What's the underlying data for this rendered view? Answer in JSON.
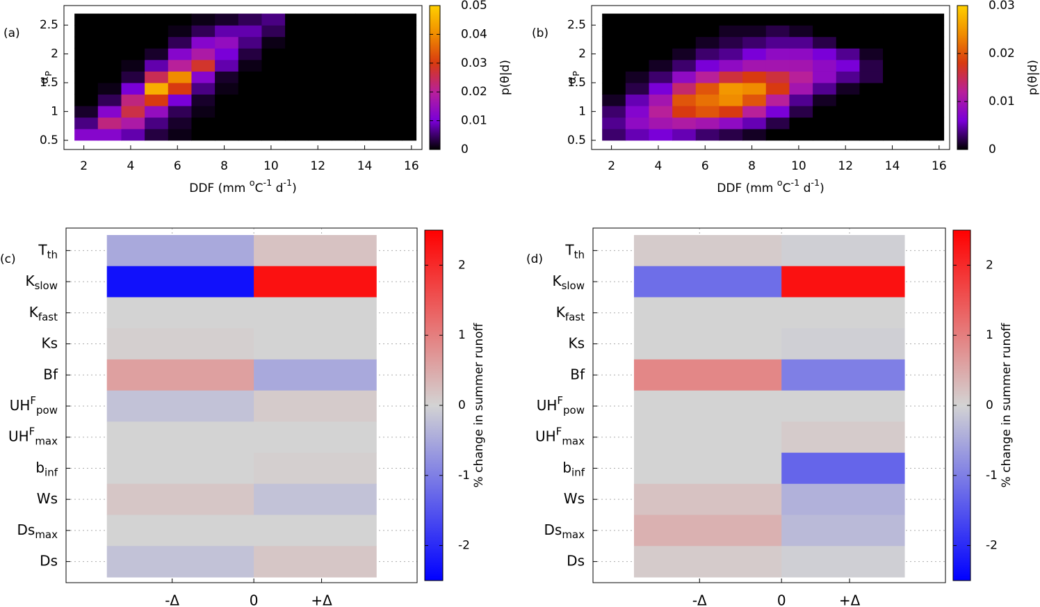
{
  "chart_data": [
    {
      "type": "histogram2d",
      "panel_label": "(a)",
      "xlabel": [
        {
          "text": "DDF (mm "
        },
        {
          "sup": "o"
        },
        {
          "text": "C"
        },
        {
          "sup": "-1"
        },
        {
          "text": " d"
        },
        {
          "sup": "-1"
        },
        {
          "text": ")"
        }
      ],
      "ylabel": {
        "base": "α",
        "sub": "P"
      },
      "xlim": [
        1.15,
        16.45
      ],
      "ylim": [
        0.34,
        2.84
      ],
      "xticks": [
        2,
        4,
        6,
        8,
        10,
        12,
        14,
        16
      ],
      "yticks": [
        0.5,
        1,
        1.5,
        2,
        2.5
      ],
      "xbins": [
        1.6,
        2.6,
        3.6,
        4.6,
        5.6,
        6.6,
        7.6,
        8.6,
        9.6,
        10.6,
        11.6,
        12.6,
        13.6,
        14.6,
        15.6,
        16.2
      ],
      "ybins": [
        0.5,
        0.7,
        0.9,
        1.1,
        1.3,
        1.5,
        1.7,
        1.9,
        2.1,
        2.3,
        2.5,
        2.7
      ],
      "values": [
        [
          0.012,
          0.012,
          0.008,
          0.003,
          0.001,
          0,
          0,
          0,
          0,
          0,
          0,
          0,
          0,
          0,
          0
        ],
        [
          0.006,
          0.022,
          0.018,
          0.006,
          0.002,
          0,
          0,
          0,
          0,
          0,
          0,
          0,
          0,
          0,
          0
        ],
        [
          0.002,
          0.012,
          0.026,
          0.014,
          0.004,
          0.001,
          0,
          0,
          0,
          0,
          0,
          0,
          0,
          0,
          0
        ],
        [
          0,
          0.004,
          0.022,
          0.03,
          0.01,
          0.002,
          0,
          0,
          0,
          0,
          0,
          0,
          0,
          0,
          0
        ],
        [
          0,
          0.001,
          0.01,
          0.045,
          0.03,
          0.006,
          0.001,
          0,
          0,
          0,
          0,
          0,
          0,
          0,
          0
        ],
        [
          0,
          0,
          0.003,
          0.025,
          0.04,
          0.012,
          0.002,
          0,
          0,
          0,
          0,
          0,
          0,
          0,
          0
        ],
        [
          0,
          0,
          0.001,
          0.008,
          0.02,
          0.028,
          0.008,
          0.001,
          0,
          0,
          0,
          0,
          0,
          0,
          0
        ],
        [
          0,
          0,
          0,
          0.002,
          0.012,
          0.018,
          0.01,
          0.003,
          0,
          0,
          0,
          0,
          0,
          0,
          0
        ],
        [
          0,
          0,
          0,
          0,
          0.004,
          0.012,
          0.014,
          0.006,
          0.001,
          0,
          0,
          0,
          0,
          0,
          0
        ],
        [
          0,
          0,
          0,
          0,
          0.001,
          0.004,
          0.008,
          0.008,
          0.004,
          0,
          0,
          0,
          0,
          0,
          0
        ],
        [
          0,
          0,
          0,
          0,
          0,
          0.001,
          0.002,
          0.004,
          0.006,
          0,
          0,
          0,
          0,
          0,
          0
        ]
      ],
      "clim": [
        0,
        0.05
      ],
      "cticks": [
        0,
        0.01,
        0.02,
        0.03,
        0.04,
        0.05
      ],
      "colorbar_label": "p(θ|d)",
      "colormap": [
        "#000000",
        "#7a00d8",
        "#b8209a",
        "#d83a10",
        "#f08c00",
        "#ffd000"
      ]
    },
    {
      "type": "histogram2d",
      "panel_label": "(b)",
      "xlabel": [
        {
          "text": "DDF (mm "
        },
        {
          "sup": "o"
        },
        {
          "text": "C"
        },
        {
          "sup": "-1"
        },
        {
          "text": " d"
        },
        {
          "sup": "-1"
        },
        {
          "text": ")"
        }
      ],
      "ylabel": {
        "base": "α",
        "sub": "P"
      },
      "xlim": [
        1.15,
        16.45
      ],
      "ylim": [
        0.34,
        2.84
      ],
      "xticks": [
        2,
        4,
        6,
        8,
        10,
        12,
        14,
        16
      ],
      "yticks": [
        0.5,
        1,
        1.5,
        2,
        2.5
      ],
      "xbins": [
        1.6,
        2.6,
        3.6,
        4.6,
        5.6,
        6.6,
        7.6,
        8.6,
        9.6,
        10.6,
        11.6,
        12.6,
        13.6,
        14.6,
        15.6,
        16.2
      ],
      "ybins": [
        0.5,
        0.7,
        0.9,
        1.1,
        1.3,
        1.5,
        1.7,
        1.9,
        2.1,
        2.3,
        2.5,
        2.7
      ],
      "values": [
        [
          0.003,
          0.005,
          0.006,
          0.005,
          0.003,
          0.002,
          0.001,
          0,
          0,
          0,
          0,
          0,
          0,
          0,
          0
        ],
        [
          0.004,
          0.008,
          0.01,
          0.011,
          0.01,
          0.008,
          0.005,
          0.002,
          0,
          0,
          0,
          0,
          0,
          0,
          0
        ],
        [
          0.003,
          0.007,
          0.012,
          0.018,
          0.02,
          0.018,
          0.012,
          0.006,
          0.002,
          0,
          0,
          0,
          0,
          0,
          0
        ],
        [
          0.001,
          0.005,
          0.01,
          0.02,
          0.022,
          0.024,
          0.02,
          0.012,
          0.004,
          0.001,
          0,
          0,
          0,
          0,
          0
        ],
        [
          0,
          0.002,
          0.006,
          0.014,
          0.02,
          0.025,
          0.024,
          0.018,
          0.01,
          0.004,
          0.001,
          0,
          0,
          0,
          0
        ],
        [
          0,
          0.001,
          0.003,
          0.008,
          0.012,
          0.016,
          0.018,
          0.016,
          0.012,
          0.008,
          0.004,
          0.002,
          0,
          0,
          0
        ],
        [
          0,
          0,
          0.001,
          0.003,
          0.006,
          0.008,
          0.01,
          0.01,
          0.01,
          0.008,
          0.006,
          0.002,
          0,
          0,
          0
        ],
        [
          0,
          0,
          0,
          0.001,
          0.003,
          0.004,
          0.006,
          0.008,
          0.008,
          0.006,
          0.004,
          0.001,
          0,
          0,
          0
        ],
        [
          0,
          0,
          0,
          0,
          0.001,
          0.002,
          0.003,
          0.004,
          0.004,
          0.002,
          0,
          0,
          0,
          0,
          0
        ],
        [
          0,
          0,
          0,
          0,
          0,
          0.001,
          0.001,
          0.002,
          0.001,
          0,
          0,
          0,
          0,
          0,
          0
        ],
        [
          0,
          0,
          0,
          0,
          0,
          0,
          0,
          0,
          0,
          0,
          0,
          0,
          0,
          0,
          0
        ]
      ],
      "clim": [
        0,
        0.03
      ],
      "cticks": [
        0,
        0.01,
        0.02,
        0.03
      ],
      "colorbar_label": "p(θ|d)",
      "colormap": [
        "#000000",
        "#7a00d8",
        "#b8209a",
        "#d83a10",
        "#f08c00",
        "#ffd000"
      ]
    },
    {
      "type": "heatmap",
      "panel_label": "(c)",
      "categories": [
        {
          "base": "T",
          "sub": "th"
        },
        {
          "base": "K",
          "sub": "slow"
        },
        {
          "base": "K",
          "sub": "fast"
        },
        {
          "base": "Ks"
        },
        {
          "base": "Bf"
        },
        {
          "base": "UH",
          "sup": "F",
          "sub": "pow"
        },
        {
          "base": "UH",
          "sup": "F",
          "sub": "max"
        },
        {
          "base": "b",
          "sub": "inf"
        },
        {
          "base": "Ws"
        },
        {
          "base": "Ds",
          "sub": "max"
        },
        {
          "base": "Ds"
        }
      ],
      "xlim": [
        -2.3,
        2.0
      ],
      "xticks": [
        {
          "value": -1,
          "label": "-Δ"
        },
        0,
        {
          "value": 0.83,
          "label": "+Δ"
        }
      ],
      "xbins": [
        -1.8,
        0,
        1.5
      ],
      "values": [
        [
          -0.5,
          0.2
        ],
        [
          -2.3,
          2.3
        ],
        [
          0,
          0
        ],
        [
          0.05,
          0
        ],
        [
          0.6,
          -0.5
        ],
        [
          -0.2,
          0.1
        ],
        [
          0,
          0
        ],
        [
          0,
          0.05
        ],
        [
          0.15,
          -0.2
        ],
        [
          0,
          0
        ],
        [
          -0.2,
          0.15
        ]
      ],
      "clim": [
        -2.5,
        2.5
      ],
      "cticks": [
        -2,
        -1,
        0,
        1,
        2
      ],
      "grid": true,
      "colorbar_label": "% change in summer runoff",
      "colormap": [
        "#0000ff",
        "#d3d3d3",
        "#ff0000"
      ]
    },
    {
      "type": "heatmap",
      "panel_label": "(d)",
      "categories": [
        {
          "base": "T",
          "sub": "th"
        },
        {
          "base": "K",
          "sub": "slow"
        },
        {
          "base": "K",
          "sub": "fast"
        },
        {
          "base": "Ks"
        },
        {
          "base": "Bf"
        },
        {
          "base": "UH",
          "sup": "F",
          "sub": "pow"
        },
        {
          "base": "UH",
          "sup": "F",
          "sub": "max"
        },
        {
          "base": "b",
          "sub": "inf"
        },
        {
          "base": "Ws"
        },
        {
          "base": "Ds",
          "sub": "max"
        },
        {
          "base": "Ds"
        }
      ],
      "xlim": [
        -2.3,
        2.0
      ],
      "xticks": [
        {
          "value": -1,
          "label": "-Δ"
        },
        0,
        {
          "value": 0.83,
          "label": "+Δ"
        }
      ],
      "xbins": [
        -1.8,
        0,
        1.5
      ],
      "values": [
        [
          0.1,
          -0.05
        ],
        [
          -1.2,
          2.3
        ],
        [
          0,
          0
        ],
        [
          0,
          -0.05
        ],
        [
          0.9,
          -1.0
        ],
        [
          0,
          0
        ],
        [
          0,
          0.1
        ],
        [
          0,
          -1.3
        ],
        [
          0.2,
          -0.4
        ],
        [
          0.4,
          -0.3
        ],
        [
          0.1,
          -0.05
        ]
      ],
      "clim": [
        -2.5,
        2.5
      ],
      "cticks": [
        -2,
        -1,
        0,
        1,
        2
      ],
      "grid": true,
      "colorbar_label": "% change in summer runoff",
      "colormap": [
        "#0000ff",
        "#d3d3d3",
        "#ff0000"
      ]
    }
  ]
}
